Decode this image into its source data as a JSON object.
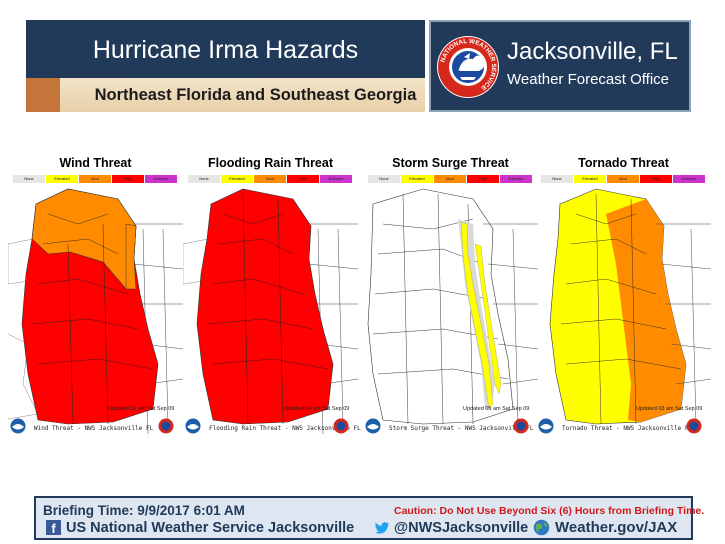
{
  "header": {
    "title": "Hurricane Irma Hazards",
    "subtitle": "Northeast Florida and Southeast Georgia",
    "office_name": "Jacksonville, FL",
    "office_sub": "Weather Forecast Office",
    "logo_ring_text": "NATIONAL WEATHER SERVICE"
  },
  "legend": [
    "None",
    "Elevated",
    "Mod",
    "High",
    "Extreme"
  ],
  "legend_colors": [
    "#ffffff",
    "#ffff00",
    "#ff8c00",
    "#ff0000",
    "#cc33cc"
  ],
  "panels": [
    {
      "title": "Wind Threat",
      "issued": "Updated 02 am Sat Sep 09",
      "footer": "Wind Threat - NWS Jacksonville FL"
    },
    {
      "title": "Flooding Rain Threat",
      "issued": "Updated 04 am Sat Sep 09",
      "footer": "Flooding Rain Threat - NWS Jacksonville FL"
    },
    {
      "title": "Storm Surge Threat",
      "issued": "Updated 05 am Sat Sep 09",
      "footer": "Storm Surge Threat - NWS Jacksonville FL"
    },
    {
      "title": "Tornado Threat",
      "issued": "Updated 03 am Sat Sep 09",
      "footer": "Tornado Threat - NWS Jacksonville FL"
    }
  ],
  "colors": {
    "header_bg": "#213a5a",
    "extreme": "#cc33cc",
    "high": "#ff0000",
    "mod": "#ff8c00",
    "elevated": "#ffff00",
    "none": "#ffffff"
  },
  "footer": {
    "briefing": "Briefing Time: 9/9/2017 6:01 AM",
    "caution": "Caution: Do Not Use Beyond Six (6) Hours from Briefing Time.",
    "facebook": "US National  Weather  Service Jacksonville",
    "twitter": "@NWSJacksonville",
    "web": "Weather.gov/JAX"
  }
}
